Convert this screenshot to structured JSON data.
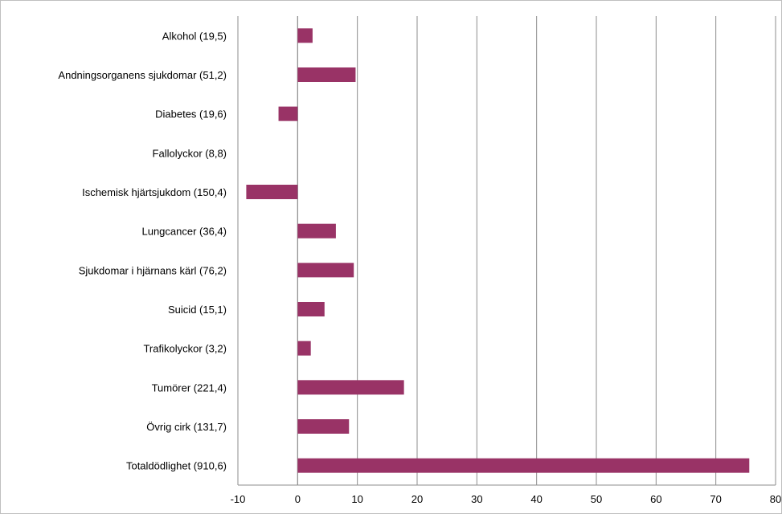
{
  "chart_data": {
    "type": "bar",
    "orientation": "horizontal",
    "title": "",
    "xlabel": "",
    "ylabel": "",
    "categories": [
      "Alkohol (19,5)",
      "Andningsorganens sjukdomar (51,2)",
      "Diabetes (19,6)",
      "Fallolyckor (8,8)",
      "Ischemisk hjärtsjukdom (150,4)",
      "Lungcancer (36,4)",
      "Sjukdomar i hjärnans kärl (76,2)",
      "Suicid (15,1)",
      "Trafikolyckor (3,2)",
      "Tumörer (221,4)",
      "Övrig cirk (131,7)",
      "Totaldödlighet (910,6)"
    ],
    "values": [
      2.5,
      9.7,
      -3.2,
      0,
      -8.6,
      6.4,
      9.4,
      4.5,
      2.2,
      17.8,
      8.6,
      75.6
    ],
    "xlim": [
      -10,
      80
    ],
    "xticks": [
      "-10",
      "0",
      "10",
      "20",
      "30",
      "40",
      "50",
      "60",
      "70",
      "80"
    ],
    "grid": true,
    "legend": "none",
    "bar_color": "#993366",
    "gridline_color": "#8c8c8c"
  }
}
